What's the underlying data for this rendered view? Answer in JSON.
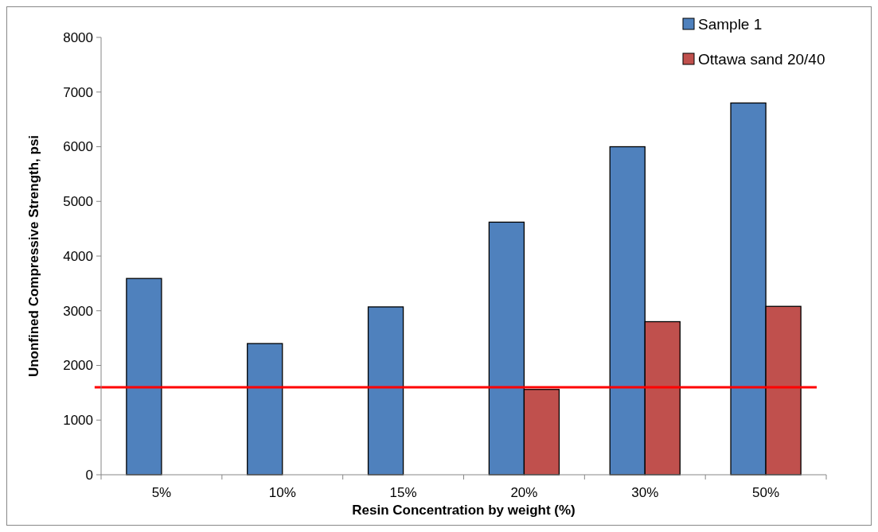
{
  "chart_data": {
    "type": "bar",
    "xlabel": "Resin Concentration by weight (%)",
    "ylabel": "Unonfined Compressive Strength, psi",
    "categories": [
      "5%",
      "10%",
      "15%",
      "20%",
      "30%",
      "50%"
    ],
    "series": [
      {
        "name": "Sample 1",
        "color": "#4f81bd",
        "values": [
          3590,
          2400,
          3070,
          4620,
          6000,
          6800
        ]
      },
      {
        "name": "Ottawa sand 20/40",
        "color": "#c0504d",
        "values": [
          null,
          null,
          null,
          1560,
          2800,
          3080
        ]
      }
    ],
    "ylim": [
      0,
      8000
    ],
    "yticks": [
      0,
      1000,
      2000,
      3000,
      4000,
      5000,
      6000,
      7000,
      8000
    ],
    "ref_lines": [
      {
        "axis": "y",
        "value": 1600,
        "color": "#ff0000"
      }
    ],
    "grid": false,
    "legend": "top right"
  }
}
